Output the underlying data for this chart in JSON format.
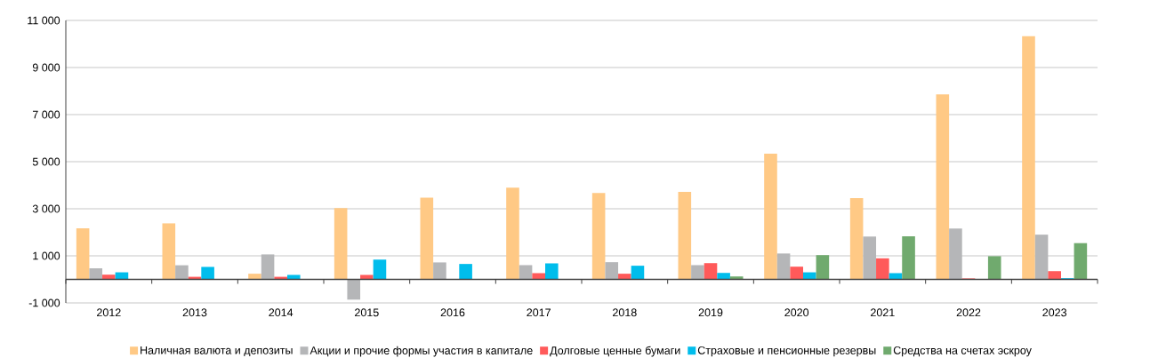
{
  "chart_data": {
    "type": "bar",
    "categories": [
      "2012",
      "2013",
      "2014",
      "2015",
      "2016",
      "2017",
      "2018",
      "2019",
      "2020",
      "2021",
      "2022",
      "2023"
    ],
    "series": [
      {
        "name": "Наличная валюта и депозиты",
        "color": "#ffc985",
        "values": [
          2170,
          2380,
          240,
          3030,
          3470,
          3900,
          3670,
          3720,
          5340,
          3450,
          7860,
          10330
        ]
      },
      {
        "name": "Акции и прочие формы участия в капитале",
        "color": "#b5b6b8",
        "values": [
          470,
          600,
          1060,
          -860,
          720,
          605,
          730,
          605,
          1100,
          1820,
          2160,
          1900
        ]
      },
      {
        "name": "Долговые ценные бумаги",
        "color": "#ff5a5a",
        "values": [
          200,
          110,
          110,
          190,
          null,
          265,
          240,
          690,
          540,
          895,
          40,
          350
        ]
      },
      {
        "name": "Страховые и пенсионные резервы",
        "color": "#00bdec",
        "values": [
          300,
          530,
          190,
          840,
          655,
          680,
          580,
          275,
          300,
          265,
          null,
          50
        ]
      },
      {
        "name": "Средства на счетах эскроу",
        "color": "#70aa6e",
        "values": [
          null,
          null,
          null,
          null,
          null,
          null,
          null,
          125,
          1030,
          1830,
          985,
          1540
        ]
      }
    ],
    "ylim": [
      -1000,
      11000
    ],
    "yticks": [
      {
        "value": -1000,
        "label": "-1 000"
      },
      {
        "value": 1000,
        "label": "1 000"
      },
      {
        "value": 3000,
        "label": "3 000"
      },
      {
        "value": 5000,
        "label": "5 000"
      },
      {
        "value": 7000,
        "label": "7 000"
      },
      {
        "value": 9000,
        "label": "9 000"
      },
      {
        "value": 11000,
        "label": "11 000"
      }
    ],
    "grid": "y",
    "legend": "bottom"
  }
}
